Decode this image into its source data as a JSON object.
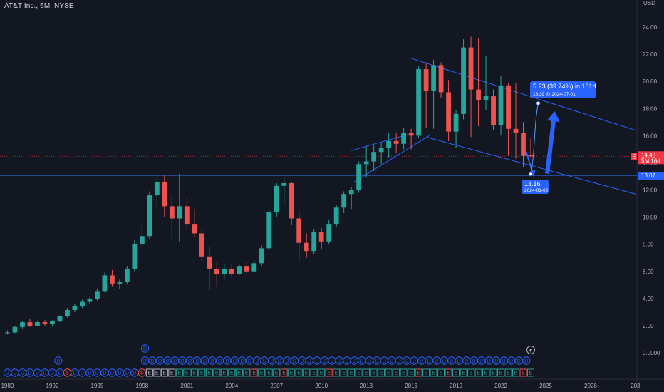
{
  "header": {
    "symbol_title": "AT&T Inc., 6M, NYSE"
  },
  "currency_badge": "USD",
  "colors": {
    "background": "#131722",
    "up": "#26a69a",
    "down": "#ef5350",
    "trendline": "#2962ff",
    "hline": "#2a62d9",
    "badge_blue": "#2962ff",
    "price_red": "#f23645"
  },
  "price_badge": {
    "value_label": "14.48",
    "countdown_label": "5M 16d",
    "flag": "E"
  },
  "hline_badge": "13.07",
  "measure": {
    "main_label": "5.23 (39.74%) in 181d",
    "sub_label": "18.39 @ 2024-07-01",
    "start_price_label": "13.16",
    "start_date_label": "2024-01-02"
  },
  "events": {
    "dividend_letter": "D",
    "split_letter": "S",
    "earnings_letter": "E",
    "flash_icon": "lightning-icon"
  },
  "chart_data": {
    "type": "candlestick",
    "title": "AT&T Inc., 6M, NYSE",
    "interval": "6M",
    "x_axis": {
      "tick_labels": [
        "1989",
        "1992",
        "1995",
        "1998",
        "2001",
        "2004",
        "2007",
        "2010",
        "2013",
        "2016",
        "2019",
        "2022",
        "2025",
        "2028",
        "203"
      ],
      "range": [
        1988.6,
        2031.0
      ]
    },
    "y_axis": {
      "tick_labels": [
        "0.0000",
        "2.00",
        "4.00",
        "6.00",
        "8.00",
        "10.00",
        "12.00",
        "14.00",
        "16.00",
        "18.00",
        "20.00",
        "22.00",
        "24.00"
      ],
      "ticks": [
        0,
        2,
        4,
        6,
        8,
        10,
        12,
        14,
        16,
        18,
        20,
        22,
        24
      ],
      "range": [
        -1.5,
        25.2
      ],
      "position": "right"
    },
    "candles": [
      {
        "t": 1989.0,
        "o": 1.45,
        "h": 1.65,
        "l": 1.35,
        "c": 1.5
      },
      {
        "t": 1989.5,
        "o": 1.5,
        "h": 2.0,
        "l": 1.45,
        "c": 1.9
      },
      {
        "t": 1990.0,
        "o": 1.9,
        "h": 2.35,
        "l": 1.8,
        "c": 2.25
      },
      {
        "t": 1990.5,
        "o": 2.25,
        "h": 2.5,
        "l": 1.9,
        "c": 2.0
      },
      {
        "t": 1991.0,
        "o": 2.0,
        "h": 2.35,
        "l": 1.95,
        "c": 2.25
      },
      {
        "t": 1991.5,
        "o": 2.25,
        "h": 2.4,
        "l": 2.0,
        "c": 2.1
      },
      {
        "t": 1992.0,
        "o": 2.1,
        "h": 2.4,
        "l": 2.0,
        "c": 2.35
      },
      {
        "t": 1992.5,
        "o": 2.35,
        "h": 2.75,
        "l": 2.25,
        "c": 2.7
      },
      {
        "t": 1993.0,
        "o": 2.7,
        "h": 3.3,
        "l": 2.6,
        "c": 3.15
      },
      {
        "t": 1993.5,
        "o": 3.15,
        "h": 3.6,
        "l": 3.0,
        "c": 3.45
      },
      {
        "t": 1994.0,
        "o": 3.45,
        "h": 3.9,
        "l": 3.3,
        "c": 3.75
      },
      {
        "t": 1994.5,
        "o": 3.75,
        "h": 4.1,
        "l": 3.6,
        "c": 3.95
      },
      {
        "t": 1995.0,
        "o": 3.95,
        "h": 4.7,
        "l": 3.85,
        "c": 4.55
      },
      {
        "t": 1995.5,
        "o": 4.55,
        "h": 5.9,
        "l": 4.45,
        "c": 5.7
      },
      {
        "t": 1996.0,
        "o": 5.7,
        "h": 6.1,
        "l": 4.9,
        "c": 5.1
      },
      {
        "t": 1996.5,
        "o": 5.1,
        "h": 5.4,
        "l": 4.7,
        "c": 5.25
      },
      {
        "t": 1997.0,
        "o": 5.25,
        "h": 6.4,
        "l": 5.1,
        "c": 6.2
      },
      {
        "t": 1997.5,
        "o": 6.2,
        "h": 8.3,
        "l": 6.0,
        "c": 8.0
      },
      {
        "t": 1998.0,
        "o": 8.0,
        "h": 9.6,
        "l": 7.8,
        "c": 8.6
      },
      {
        "t": 1998.5,
        "o": 8.6,
        "h": 11.9,
        "l": 8.4,
        "c": 11.6
      },
      {
        "t": 1999.0,
        "o": 11.6,
        "h": 13.0,
        "l": 10.8,
        "c": 12.6
      },
      {
        "t": 1999.5,
        "o": 12.6,
        "h": 13.1,
        "l": 10.0,
        "c": 10.8
      },
      {
        "t": 2000.0,
        "o": 10.8,
        "h": 11.6,
        "l": 8.4,
        "c": 9.9
      },
      {
        "t": 2000.5,
        "o": 9.9,
        "h": 13.2,
        "l": 8.2,
        "c": 10.8
      },
      {
        "t": 2001.0,
        "o": 10.8,
        "h": 11.4,
        "l": 9.0,
        "c": 9.5
      },
      {
        "t": 2001.5,
        "o": 9.5,
        "h": 10.6,
        "l": 8.5,
        "c": 8.8
      },
      {
        "t": 2002.0,
        "o": 8.8,
        "h": 9.1,
        "l": 6.8,
        "c": 7.1
      },
      {
        "t": 2002.5,
        "o": 7.1,
        "h": 7.8,
        "l": 4.6,
        "c": 6.2
      },
      {
        "t": 2003.0,
        "o": 6.2,
        "h": 6.7,
        "l": 4.9,
        "c": 5.8
      },
      {
        "t": 2003.5,
        "o": 5.8,
        "h": 6.5,
        "l": 5.4,
        "c": 6.2
      },
      {
        "t": 2004.0,
        "o": 6.2,
        "h": 6.5,
        "l": 5.6,
        "c": 5.8
      },
      {
        "t": 2004.5,
        "o": 5.8,
        "h": 6.6,
        "l": 5.7,
        "c": 6.4
      },
      {
        "t": 2005.0,
        "o": 6.4,
        "h": 6.7,
        "l": 5.9,
        "c": 6.0
      },
      {
        "t": 2005.5,
        "o": 6.0,
        "h": 6.8,
        "l": 5.9,
        "c": 6.6
      },
      {
        "t": 2006.0,
        "o": 6.6,
        "h": 7.9,
        "l": 6.4,
        "c": 7.7
      },
      {
        "t": 2006.5,
        "o": 7.7,
        "h": 10.5,
        "l": 7.6,
        "c": 10.4
      },
      {
        "t": 2007.0,
        "o": 10.4,
        "h": 12.5,
        "l": 10.0,
        "c": 12.3
      },
      {
        "t": 2007.5,
        "o": 12.3,
        "h": 12.9,
        "l": 11.0,
        "c": 12.5
      },
      {
        "t": 2008.0,
        "o": 12.5,
        "h": 12.6,
        "l": 9.4,
        "c": 9.9
      },
      {
        "t": 2008.5,
        "o": 9.9,
        "h": 10.4,
        "l": 6.8,
        "c": 8.1
      },
      {
        "t": 2009.0,
        "o": 8.1,
        "h": 8.8,
        "l": 7.0,
        "c": 7.5
      },
      {
        "t": 2009.5,
        "o": 7.5,
        "h": 9.1,
        "l": 7.3,
        "c": 8.9
      },
      {
        "t": 2010.0,
        "o": 8.9,
        "h": 9.2,
        "l": 7.6,
        "c": 8.2
      },
      {
        "t": 2010.5,
        "o": 8.2,
        "h": 9.8,
        "l": 8.0,
        "c": 9.5
      },
      {
        "t": 2011.0,
        "o": 9.5,
        "h": 10.9,
        "l": 9.3,
        "c": 10.7
      },
      {
        "t": 2011.5,
        "o": 10.7,
        "h": 11.9,
        "l": 10.3,
        "c": 11.7
      },
      {
        "t": 2012.0,
        "o": 11.7,
        "h": 12.2,
        "l": 10.6,
        "c": 12.0
      },
      {
        "t": 2012.5,
        "o": 12.0,
        "h": 14.1,
        "l": 11.8,
        "c": 13.9
      },
      {
        "t": 2013.0,
        "o": 13.9,
        "h": 15.2,
        "l": 12.9,
        "c": 14.1
      },
      {
        "t": 2013.5,
        "o": 14.1,
        "h": 15.3,
        "l": 13.4,
        "c": 14.8
      },
      {
        "t": 2014.0,
        "o": 14.8,
        "h": 15.5,
        "l": 13.9,
        "c": 15.1
      },
      {
        "t": 2014.5,
        "o": 15.1,
        "h": 16.2,
        "l": 14.4,
        "c": 15.6
      },
      {
        "t": 2015.0,
        "o": 15.6,
        "h": 16.2,
        "l": 14.7,
        "c": 15.4
      },
      {
        "t": 2015.5,
        "o": 15.4,
        "h": 16.6,
        "l": 15.0,
        "c": 16.2
      },
      {
        "t": 2016.0,
        "o": 16.2,
        "h": 16.5,
        "l": 15.0,
        "c": 16.0
      },
      {
        "t": 2016.5,
        "o": 16.0,
        "h": 21.1,
        "l": 15.8,
        "c": 20.9
      },
      {
        "t": 2017.0,
        "o": 20.9,
        "h": 21.4,
        "l": 16.6,
        "c": 19.3
      },
      {
        "t": 2017.5,
        "o": 19.3,
        "h": 21.6,
        "l": 16.5,
        "c": 21.2
      },
      {
        "t": 2018.0,
        "o": 21.2,
        "h": 21.4,
        "l": 18.8,
        "c": 19.2
      },
      {
        "t": 2018.5,
        "o": 19.2,
        "h": 20.1,
        "l": 15.6,
        "c": 16.3
      },
      {
        "t": 2019.0,
        "o": 16.3,
        "h": 17.9,
        "l": 15.1,
        "c": 17.6
      },
      {
        "t": 2019.5,
        "o": 17.6,
        "h": 23.1,
        "l": 17.2,
        "c": 22.5
      },
      {
        "t": 2020.0,
        "o": 22.5,
        "h": 23.3,
        "l": 15.9,
        "c": 19.4
      },
      {
        "t": 2020.5,
        "o": 19.4,
        "h": 23.2,
        "l": 16.7,
        "c": 18.6
      },
      {
        "t": 2021.0,
        "o": 18.6,
        "h": 21.9,
        "l": 17.9,
        "c": 18.9
      },
      {
        "t": 2021.5,
        "o": 18.9,
        "h": 19.4,
        "l": 16.4,
        "c": 16.8
      },
      {
        "t": 2022.0,
        "o": 16.8,
        "h": 20.4,
        "l": 16.0,
        "c": 19.7
      },
      {
        "t": 2022.5,
        "o": 19.7,
        "h": 19.9,
        "l": 14.5,
        "c": 16.5
      },
      {
        "t": 2023.0,
        "o": 16.5,
        "h": 19.9,
        "l": 14.3,
        "c": 16.2
      },
      {
        "t": 2023.5,
        "o": 16.2,
        "h": 17.0,
        "l": 13.7,
        "c": 14.5
      },
      {
        "t": 2024.0,
        "o": 14.6,
        "h": 15.8,
        "l": 14.4,
        "c": 14.48
      }
    ],
    "hline": {
      "price": 13.07
    },
    "last_price": 14.48,
    "trendlines": [
      {
        "t1": 2016.0,
        "p1": 21.7,
        "t2": 2031.0,
        "p2": 16.4
      },
      {
        "t1": 2017.0,
        "p1": 15.9,
        "t2": 2031.0,
        "p2": 11.7
      },
      {
        "t1": 2012.0,
        "p1": 14.9,
        "t2": 2015.8,
        "p2": 16.1
      },
      {
        "t1": 2012.2,
        "p1": 12.6,
        "t2": 2017.2,
        "p2": 16.0
      }
    ],
    "measure": {
      "start": {
        "t": 2024.0,
        "p": 13.16
      },
      "end": {
        "t": 2024.5,
        "p": 18.39
      }
    },
    "arrows": [
      {
        "t1": 2023.7,
        "p1": 14.8,
        "t2": 2024.2,
        "p2": 13.0
      },
      {
        "t1": 2025.1,
        "p1": 13.2,
        "t2": 2025.6,
        "p2": 17.8
      }
    ],
    "dividend_row_1_t": [
      2016.4,
      2021.6
    ],
    "dividend_row_1_start": 1992.0,
    "dividend_row_2_t": [
      1989.0,
      2023.9
    ],
    "split_events_t": [
      1993.0,
      1998.0
    ],
    "earnings_row_t": [
      1998.4,
      2024.0
    ],
    "legend": "none",
    "grid": false
  }
}
